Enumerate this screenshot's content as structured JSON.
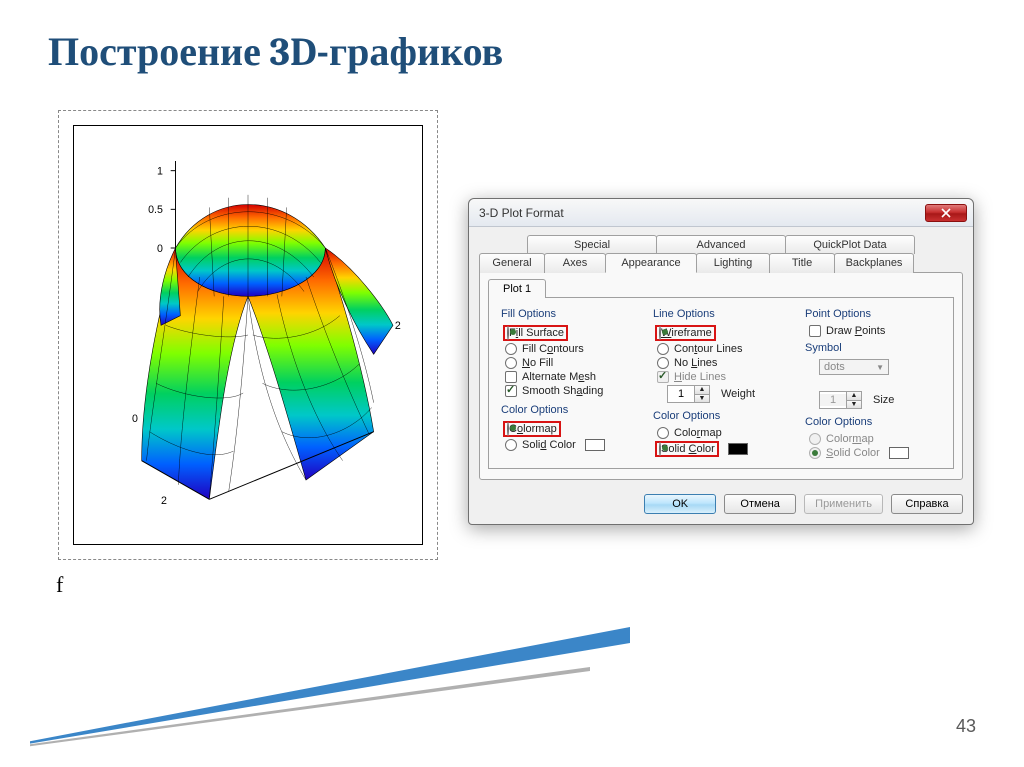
{
  "slide": {
    "title": "Построение 3D-графиков",
    "title_color": "#1f4e79",
    "page_number": "43",
    "f_label": "f"
  },
  "chart": {
    "type": "3d-surface",
    "z_ticks": [
      "1",
      "0.5",
      "0"
    ],
    "right_ticks": [
      "2",
      "0",
      "1",
      "2"
    ],
    "colormap_stops": [
      "#d40000",
      "#ff6a00",
      "#ffd400",
      "#7fff00",
      "#00d060",
      "#00c8c8",
      "#0060ff",
      "#2000c0"
    ],
    "wire_color": "#000000",
    "background": "#ffffff"
  },
  "decor": {
    "line1_color": "#3b86c8",
    "line2_color": "#b0b0b0"
  },
  "dialog": {
    "title": "3-D Plot Format",
    "tabs_top": [
      "Special",
      "Advanced",
      "QuickPlot Data"
    ],
    "tabs_top_widths": [
      130,
      130,
      130
    ],
    "tabs_bottom": [
      "General",
      "Axes",
      "Appearance",
      "Lighting",
      "Title",
      "Backplanes"
    ],
    "tabs_bottom_widths": [
      66,
      62,
      92,
      74,
      66,
      80
    ],
    "active_tab": "Appearance",
    "sub_tab": "Plot 1",
    "columns": {
      "fill": {
        "header": "Fill Options",
        "items": [
          {
            "kind": "radio",
            "label_html": "F<u>i</u>ll Surface",
            "checked": true,
            "hl": true,
            "name": "fill-surface-radio"
          },
          {
            "kind": "radio",
            "label_html": "Fill C<u>o</u>ntours",
            "checked": false,
            "name": "fill-contours-radio"
          },
          {
            "kind": "radio",
            "label_html": "<u>N</u>o Fill",
            "checked": false,
            "name": "no-fill-radio"
          },
          {
            "kind": "check",
            "label_html": "Alternate M<u>e</u>sh",
            "checked": false,
            "name": "alternate-mesh-check"
          },
          {
            "kind": "check",
            "label_html": "Smooth Sh<u>a</u>ding",
            "checked": true,
            "name": "smooth-shading-check"
          }
        ],
        "color_header": "Color Options",
        "colors": [
          {
            "kind": "radio",
            "label_html": "C<u>o</u>lormap",
            "checked": true,
            "hl": true,
            "name": "fill-colormap-radio"
          },
          {
            "kind": "radio",
            "label_html": "Soli<u>d</u> Color",
            "checked": false,
            "name": "fill-solidcolor-radio",
            "swatch": "#ffffff"
          }
        ]
      },
      "line": {
        "header": "Line Options",
        "items": [
          {
            "kind": "radio",
            "label_html": "<u>W</u>ireframe",
            "checked": true,
            "hl": true,
            "name": "wireframe-radio"
          },
          {
            "kind": "radio",
            "label_html": "Con<u>t</u>our Lines",
            "checked": false,
            "name": "contour-lines-radio"
          },
          {
            "kind": "radio",
            "label_html": "No <u>L</u>ines",
            "checked": false,
            "name": "no-lines-radio"
          },
          {
            "kind": "check",
            "label_html": "<u>H</u>ide Lines",
            "checked": true,
            "disabled": true,
            "name": "hide-lines-check"
          }
        ],
        "weight_value": "1",
        "weight_label": "Weight",
        "color_header": "Color Options",
        "colors": [
          {
            "kind": "radio",
            "label_html": "Colo<u>r</u>map",
            "checked": false,
            "name": "line-colormap-radio"
          },
          {
            "kind": "radio",
            "label_html": "Solid <u>C</u>olor",
            "checked": true,
            "hl": true,
            "name": "line-solidcolor-radio",
            "swatch": "#000000"
          }
        ]
      },
      "point": {
        "header": "Point Options",
        "draw_points": {
          "label_html": "Draw <u>P</u>oints",
          "checked": false
        },
        "symbol_label": "Symbol",
        "symbol_value": "dots",
        "size_value": "1",
        "size_label": "Size",
        "color_header": "Color Options",
        "colors": [
          {
            "kind": "radio",
            "label_html": "Color<u>m</u>ap",
            "checked": false,
            "disabled": true,
            "name": "pt-colormap-radio"
          },
          {
            "kind": "radio",
            "label_html": "<u>S</u>olid Color",
            "checked": true,
            "disabled": true,
            "name": "pt-solidcolor-radio",
            "swatch": "#ffffff"
          }
        ]
      }
    },
    "buttons": {
      "ok": "OK",
      "cancel": "Отмена",
      "apply": "Применить",
      "help": "Справка"
    }
  }
}
